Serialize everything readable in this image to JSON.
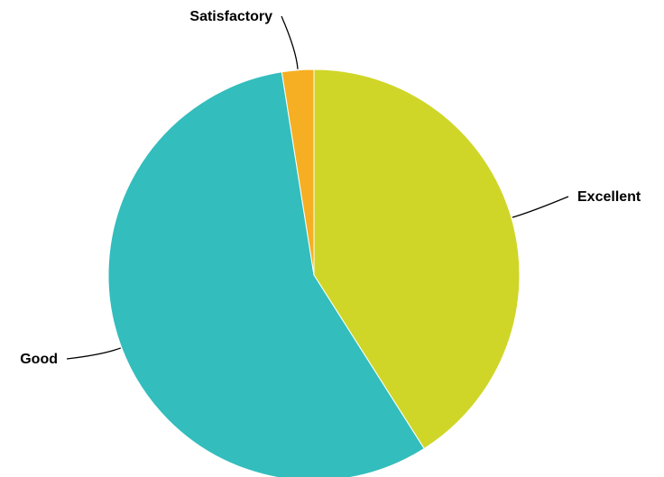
{
  "chart_data": {
    "type": "pie",
    "slices": [
      {
        "label": "Excellent",
        "value": 41,
        "color": "#cfd628"
      },
      {
        "label": "Good",
        "value": 56.5,
        "color": "#33bdbd"
      },
      {
        "label": "Satisfactory",
        "value": 2.5,
        "color": "#f6ae23"
      }
    ],
    "start_angle_deg": 0,
    "direction": "clockwise",
    "legend": "none",
    "labels_style": "outside-with-leader-lines"
  }
}
